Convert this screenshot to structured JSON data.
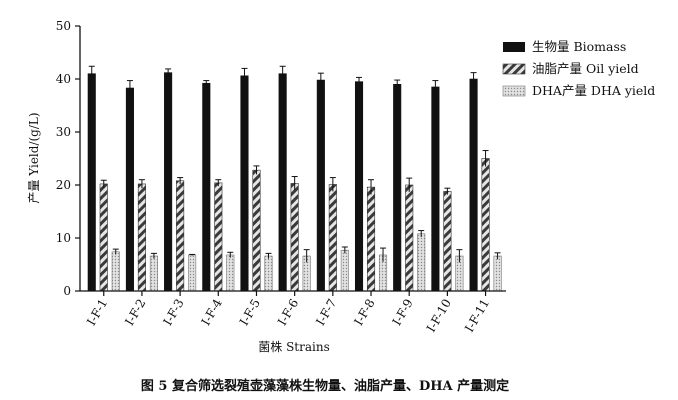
{
  "chart_data": {
    "type": "bar",
    "title": "图 5   复合筛选裂殖壶藻藻株生物量、油脂产量、DHA 产量测定",
    "xlabel": "菌株 Strains",
    "ylabel": "产量 Yield/(g/L)",
    "ylim": [
      0,
      50
    ],
    "yticks": [
      "0",
      "10",
      "20",
      "30",
      "40",
      "50"
    ],
    "categories": [
      "I-F-1",
      "I-F-2",
      "I-F-3",
      "I-F-4",
      "I-F-5",
      "I-F-6",
      "I-F-7",
      "I-F-8",
      "I-F-9",
      "I-F-10",
      "I-F-11"
    ],
    "legend_position": "top-right",
    "series": [
      {
        "name": "生物量  Biomass",
        "pattern": "solid",
        "color": "#111111",
        "values": [
          41.0,
          38.3,
          41.2,
          39.2,
          40.6,
          41.0,
          39.8,
          39.5,
          39.0,
          38.5,
          40.0
        ],
        "errors": [
          1.4,
          1.4,
          0.7,
          0.5,
          1.4,
          1.4,
          1.3,
          0.8,
          0.8,
          1.2,
          1.2
        ]
      },
      {
        "name": "油脂产量  Oil yield",
        "pattern": "hatch",
        "color": "#444444",
        "values": [
          20.2,
          20.2,
          20.8,
          20.4,
          22.8,
          20.3,
          20.1,
          19.6,
          20.0,
          18.8,
          25.0
        ],
        "errors": [
          0.7,
          0.8,
          0.6,
          0.6,
          0.8,
          1.3,
          1.3,
          1.4,
          1.3,
          0.6,
          1.5
        ]
      },
      {
        "name": "DHA产量  DHA yield",
        "pattern": "dotted",
        "color": "#bbbbbb",
        "values": [
          7.4,
          6.6,
          6.8,
          6.8,
          6.6,
          6.6,
          7.7,
          6.8,
          10.8,
          6.6,
          6.6
        ],
        "errors": [
          0.5,
          0.5,
          0.1,
          0.5,
          0.5,
          1.2,
          0.6,
          1.3,
          0.6,
          1.2,
          0.6
        ]
      }
    ]
  }
}
